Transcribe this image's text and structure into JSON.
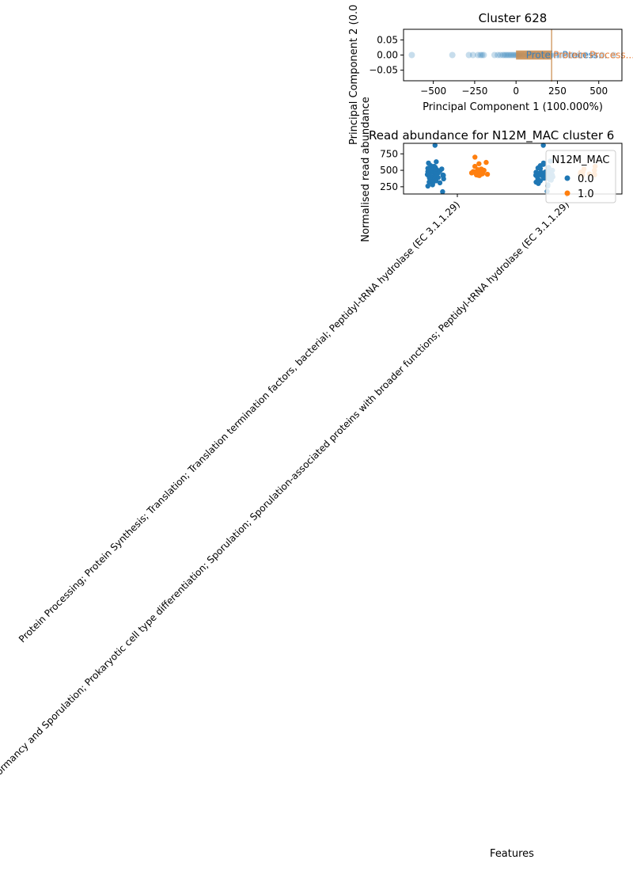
{
  "chart_data": [
    {
      "type": "scatter",
      "title": "Cluster 628",
      "xlabel": "Principal Component 1 (100.000%)",
      "ylabel": "Principal Component 2 (0.0",
      "xlim": [
        -680,
        640
      ],
      "ylim": [
        -0.085,
        0.085
      ],
      "xticks": [
        -500,
        -250,
        0,
        250,
        500
      ],
      "xtick_labels": [
        "−500",
        "−250",
        "0",
        "250",
        "500"
      ],
      "yticks": [
        0.05,
        0.0,
        -0.05
      ],
      "ytick_labels": [
        "0.05",
        "0.00",
        "−0.05"
      ],
      "points_color": "#1f77b4",
      "points": [
        {
          "x": -630,
          "y": 0
        },
        {
          "x": -385,
          "y": 0
        },
        {
          "x": -285,
          "y": 0
        },
        {
          "x": -260,
          "y": 0
        },
        {
          "x": -230,
          "y": 0
        },
        {
          "x": -215,
          "y": 0
        },
        {
          "x": -205,
          "y": 0
        },
        {
          "x": -195,
          "y": 0
        },
        {
          "x": -130,
          "y": 0
        },
        {
          "x": -110,
          "y": 0
        },
        {
          "x": -95,
          "y": 0
        },
        {
          "x": -80,
          "y": 0
        },
        {
          "x": -70,
          "y": 0
        },
        {
          "x": -60,
          "y": 0
        },
        {
          "x": -50,
          "y": 0
        },
        {
          "x": -40,
          "y": 0
        },
        {
          "x": -30,
          "y": 0
        },
        {
          "x": -20,
          "y": 0
        },
        {
          "x": -10,
          "y": 0
        },
        {
          "x": 0,
          "y": 0
        },
        {
          "x": 10,
          "y": 0
        },
        {
          "x": 20,
          "y": 0
        },
        {
          "x": 35,
          "y": 0
        },
        {
          "x": 50,
          "y": 0
        },
        {
          "x": 70,
          "y": 0
        },
        {
          "x": 90,
          "y": 0
        },
        {
          "x": 110,
          "y": 0
        },
        {
          "x": 130,
          "y": 0
        },
        {
          "x": 150,
          "y": 0
        },
        {
          "x": 170,
          "y": 0
        },
        {
          "x": 190,
          "y": 0
        },
        {
          "x": 210,
          "y": 0
        },
        {
          "x": 240,
          "y": 0
        },
        {
          "x": 270,
          "y": 0
        },
        {
          "x": 300,
          "y": 0
        },
        {
          "x": 340,
          "y": 0
        },
        {
          "x": 380,
          "y": 0
        },
        {
          "x": 420,
          "y": 0
        },
        {
          "x": 470,
          "y": 0
        },
        {
          "x": 520,
          "y": 0
        },
        {
          "x": 590,
          "y": 0
        }
      ],
      "loading_vector": {
        "x0": 0,
        "y0": 0,
        "x1": 215,
        "y1": 0.0,
        "color": "#c98a4a"
      },
      "annotations": [
        {
          "text": "Protein Process...",
          "x": 60,
          "y": 0,
          "color": "#3f7fb5"
        },
        {
          "text": "Protein Process...",
          "x": 225,
          "y": 0,
          "color": "#e8803a"
        }
      ]
    },
    {
      "type": "strip",
      "title": "Read abundance for N12M_MAC cluster 6",
      "xlabel": "Features",
      "ylabel": "Normalised read abundance",
      "ylim": [
        140,
        910
      ],
      "yticks": [
        250,
        500,
        750
      ],
      "ytick_labels": [
        "250",
        "500",
        "750"
      ],
      "categories": [
        "Protein Processing; Protein Synthesis; Translation; Translation termination factors, bacterial; Peptidyl-tRNA hydrolase (EC 3.1.1.29)",
        "Dormancy and Sporulation; Prokaryotic cell type differentiation; Sporulation; Sporulation-associated proteins with broader functions; Peptidyl-tRNA hydrolase (EC 3.1.1.29)"
      ],
      "legend": {
        "title": "N12M_MAC",
        "position": "upper right",
        "entries": [
          {
            "label": "0.0",
            "color": "#1f77b4"
          },
          {
            "label": "1.0",
            "color": "#ff7f0e"
          }
        ]
      },
      "series": [
        {
          "name": "0.0",
          "category": 0,
          "values": [
            880,
            630,
            610,
            570,
            560,
            545,
            530,
            520,
            510,
            505,
            500,
            495,
            490,
            480,
            470,
            465,
            460,
            455,
            450,
            445,
            440,
            435,
            430,
            425,
            420,
            415,
            410,
            405,
            400,
            395,
            390,
            385,
            380,
            370,
            360,
            350,
            340,
            330,
            320,
            310,
            300,
            280,
            260,
            175
          ]
        },
        {
          "name": "1.0",
          "category": 0,
          "values": [
            700,
            620,
            600,
            560,
            520,
            510,
            500,
            490,
            480,
            475,
            470,
            465,
            460,
            455,
            450,
            445,
            440,
            430,
            425,
            420
          ]
        },
        {
          "name": "0.0",
          "category": 1,
          "values": [
            880,
            640,
            610,
            590,
            570,
            555,
            545,
            535,
            525,
            515,
            505,
            500,
            495,
            490,
            485,
            480,
            475,
            470,
            465,
            460,
            455,
            450,
            445,
            440,
            435,
            430,
            425,
            420,
            415,
            410,
            405,
            400,
            395,
            390,
            385,
            380,
            370,
            360,
            350,
            340,
            320,
            300,
            280,
            260,
            180
          ]
        },
        {
          "name": "1.0",
          "category": 1,
          "values": [
            560,
            520,
            500,
            480,
            470,
            460,
            450,
            445,
            440,
            430,
            425
          ]
        }
      ]
    }
  ]
}
